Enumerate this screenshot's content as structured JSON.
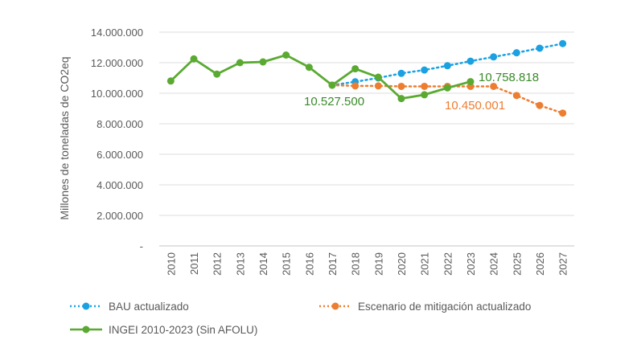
{
  "chart_data": {
    "type": "line",
    "title": "",
    "xlabel": "",
    "ylabel": "Millones de toneladas de CO2eq",
    "ylim": [
      0,
      14000000
    ],
    "yticks": [
      0,
      2000000,
      4000000,
      6000000,
      8000000,
      10000000,
      12000000,
      14000000
    ],
    "ytick_labels": [
      "-",
      "2.000.000",
      "4.000.000",
      "6.000.000",
      "8.000.000",
      "10.000.000",
      "12.000.000",
      "14.000.000"
    ],
    "categories": [
      "2010",
      "2011",
      "2012",
      "2013",
      "2014",
      "2015",
      "2016",
      "2017",
      "2018",
      "2019",
      "2020",
      "2021",
      "2022",
      "2023",
      "2024",
      "2025",
      "2026",
      "2027"
    ],
    "grid": true,
    "legend_position": "bottom",
    "series": [
      {
        "name": "BAU actualizado",
        "color": "#1ba1e2",
        "style": "dotted",
        "values": [
          null,
          null,
          null,
          null,
          null,
          null,
          null,
          10527500,
          10750000,
          11000000,
          11300000,
          11520000,
          11800000,
          12100000,
          12380000,
          12650000,
          12950000,
          13250000
        ]
      },
      {
        "name": "Escenario de mitigación actualizado",
        "color": "#ed7d31",
        "style": "dotted",
        "values": [
          null,
          null,
          null,
          null,
          null,
          null,
          null,
          10527500,
          10480000,
          10480000,
          10450000,
          10450000,
          10450000,
          10450001,
          10450001,
          9850000,
          9200000,
          8700000
        ]
      },
      {
        "name": "INGEI 2010-2023 (Sin AFOLU)",
        "color": "#5aaa32",
        "style": "solid",
        "values": [
          10800000,
          12250000,
          11250000,
          12000000,
          12050000,
          12500000,
          11700000,
          10527500,
          11600000,
          11050000,
          9650000,
          9900000,
          10350000,
          10758818,
          null,
          null,
          null,
          null
        ]
      }
    ],
    "annotations": [
      {
        "text": "10.527.500",
        "color": "#3a8a2a",
        "x": "2017"
      },
      {
        "text": "10.758.818",
        "color": "#3a8a2a",
        "x": "2023"
      },
      {
        "text": "10.450.001",
        "color": "#ed7d31",
        "x": "2024"
      }
    ]
  }
}
